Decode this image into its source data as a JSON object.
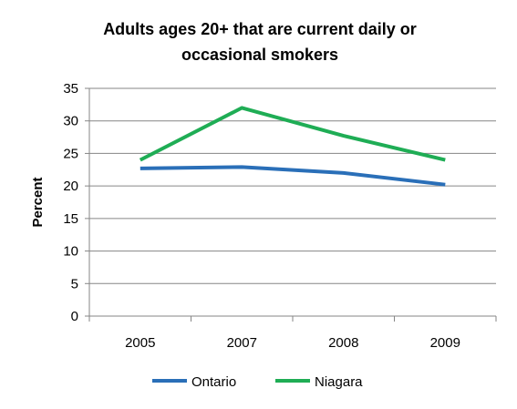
{
  "chart_data": {
    "type": "line",
    "title_lines": [
      "Adults ages 20+ that are current daily or",
      "occasional smokers"
    ],
    "xlabel": "",
    "ylabel": "Percent",
    "categories": [
      "2005",
      "2007",
      "2008",
      "2009"
    ],
    "ylim": [
      0,
      35
    ],
    "yticks": [
      0,
      5,
      10,
      15,
      20,
      25,
      30,
      35
    ],
    "grid": true,
    "legend_position": "bottom",
    "series": [
      {
        "name": "Ontario",
        "color": "#2a6fb8",
        "values": [
          22.7,
          22.9,
          22.0,
          20.2
        ]
      },
      {
        "name": "Niagara",
        "color": "#1fad55",
        "values": [
          24.0,
          32.0,
          27.7,
          24.0
        ]
      }
    ]
  }
}
